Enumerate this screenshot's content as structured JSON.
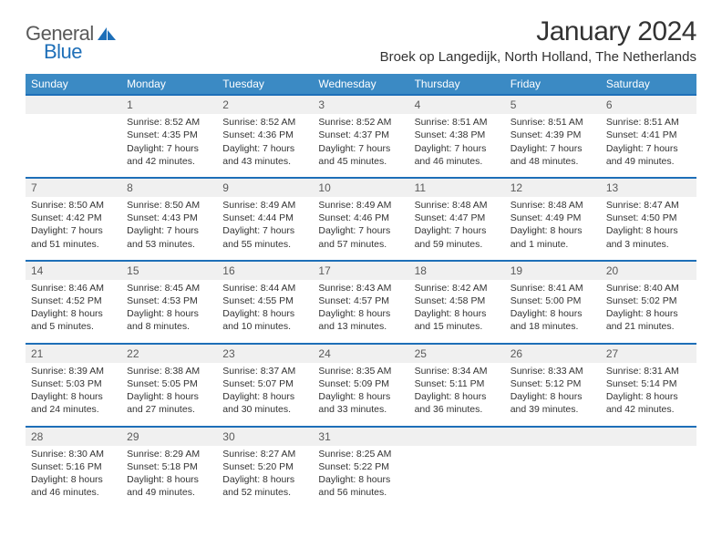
{
  "logo": {
    "word1": "General",
    "word2": "Blue"
  },
  "title": "January 2024",
  "location": "Broek op Langedijk, North Holland, The Netherlands",
  "colors": {
    "header_bg": "#3b8ac4",
    "header_border": "#1e6fb8",
    "daynum_bg": "#f0f0f0",
    "text": "#333333",
    "logo_gray": "#5a5a5a",
    "logo_blue": "#1e6fb8"
  },
  "weekdays": [
    "Sunday",
    "Monday",
    "Tuesday",
    "Wednesday",
    "Thursday",
    "Friday",
    "Saturday"
  ],
  "weeks": [
    {
      "nums": [
        "",
        "1",
        "2",
        "3",
        "4",
        "5",
        "6"
      ],
      "cells": [
        {
          "sunrise": "",
          "sunset": "",
          "daylight1": "",
          "daylight2": ""
        },
        {
          "sunrise": "Sunrise: 8:52 AM",
          "sunset": "Sunset: 4:35 PM",
          "daylight1": "Daylight: 7 hours",
          "daylight2": "and 42 minutes."
        },
        {
          "sunrise": "Sunrise: 8:52 AM",
          "sunset": "Sunset: 4:36 PM",
          "daylight1": "Daylight: 7 hours",
          "daylight2": "and 43 minutes."
        },
        {
          "sunrise": "Sunrise: 8:52 AM",
          "sunset": "Sunset: 4:37 PM",
          "daylight1": "Daylight: 7 hours",
          "daylight2": "and 45 minutes."
        },
        {
          "sunrise": "Sunrise: 8:51 AM",
          "sunset": "Sunset: 4:38 PM",
          "daylight1": "Daylight: 7 hours",
          "daylight2": "and 46 minutes."
        },
        {
          "sunrise": "Sunrise: 8:51 AM",
          "sunset": "Sunset: 4:39 PM",
          "daylight1": "Daylight: 7 hours",
          "daylight2": "and 48 minutes."
        },
        {
          "sunrise": "Sunrise: 8:51 AM",
          "sunset": "Sunset: 4:41 PM",
          "daylight1": "Daylight: 7 hours",
          "daylight2": "and 49 minutes."
        }
      ]
    },
    {
      "nums": [
        "7",
        "8",
        "9",
        "10",
        "11",
        "12",
        "13"
      ],
      "cells": [
        {
          "sunrise": "Sunrise: 8:50 AM",
          "sunset": "Sunset: 4:42 PM",
          "daylight1": "Daylight: 7 hours",
          "daylight2": "and 51 minutes."
        },
        {
          "sunrise": "Sunrise: 8:50 AM",
          "sunset": "Sunset: 4:43 PM",
          "daylight1": "Daylight: 7 hours",
          "daylight2": "and 53 minutes."
        },
        {
          "sunrise": "Sunrise: 8:49 AM",
          "sunset": "Sunset: 4:44 PM",
          "daylight1": "Daylight: 7 hours",
          "daylight2": "and 55 minutes."
        },
        {
          "sunrise": "Sunrise: 8:49 AM",
          "sunset": "Sunset: 4:46 PM",
          "daylight1": "Daylight: 7 hours",
          "daylight2": "and 57 minutes."
        },
        {
          "sunrise": "Sunrise: 8:48 AM",
          "sunset": "Sunset: 4:47 PM",
          "daylight1": "Daylight: 7 hours",
          "daylight2": "and 59 minutes."
        },
        {
          "sunrise": "Sunrise: 8:48 AM",
          "sunset": "Sunset: 4:49 PM",
          "daylight1": "Daylight: 8 hours",
          "daylight2": "and 1 minute."
        },
        {
          "sunrise": "Sunrise: 8:47 AM",
          "sunset": "Sunset: 4:50 PM",
          "daylight1": "Daylight: 8 hours",
          "daylight2": "and 3 minutes."
        }
      ]
    },
    {
      "nums": [
        "14",
        "15",
        "16",
        "17",
        "18",
        "19",
        "20"
      ],
      "cells": [
        {
          "sunrise": "Sunrise: 8:46 AM",
          "sunset": "Sunset: 4:52 PM",
          "daylight1": "Daylight: 8 hours",
          "daylight2": "and 5 minutes."
        },
        {
          "sunrise": "Sunrise: 8:45 AM",
          "sunset": "Sunset: 4:53 PM",
          "daylight1": "Daylight: 8 hours",
          "daylight2": "and 8 minutes."
        },
        {
          "sunrise": "Sunrise: 8:44 AM",
          "sunset": "Sunset: 4:55 PM",
          "daylight1": "Daylight: 8 hours",
          "daylight2": "and 10 minutes."
        },
        {
          "sunrise": "Sunrise: 8:43 AM",
          "sunset": "Sunset: 4:57 PM",
          "daylight1": "Daylight: 8 hours",
          "daylight2": "and 13 minutes."
        },
        {
          "sunrise": "Sunrise: 8:42 AM",
          "sunset": "Sunset: 4:58 PM",
          "daylight1": "Daylight: 8 hours",
          "daylight2": "and 15 minutes."
        },
        {
          "sunrise": "Sunrise: 8:41 AM",
          "sunset": "Sunset: 5:00 PM",
          "daylight1": "Daylight: 8 hours",
          "daylight2": "and 18 minutes."
        },
        {
          "sunrise": "Sunrise: 8:40 AM",
          "sunset": "Sunset: 5:02 PM",
          "daylight1": "Daylight: 8 hours",
          "daylight2": "and 21 minutes."
        }
      ]
    },
    {
      "nums": [
        "21",
        "22",
        "23",
        "24",
        "25",
        "26",
        "27"
      ],
      "cells": [
        {
          "sunrise": "Sunrise: 8:39 AM",
          "sunset": "Sunset: 5:03 PM",
          "daylight1": "Daylight: 8 hours",
          "daylight2": "and 24 minutes."
        },
        {
          "sunrise": "Sunrise: 8:38 AM",
          "sunset": "Sunset: 5:05 PM",
          "daylight1": "Daylight: 8 hours",
          "daylight2": "and 27 minutes."
        },
        {
          "sunrise": "Sunrise: 8:37 AM",
          "sunset": "Sunset: 5:07 PM",
          "daylight1": "Daylight: 8 hours",
          "daylight2": "and 30 minutes."
        },
        {
          "sunrise": "Sunrise: 8:35 AM",
          "sunset": "Sunset: 5:09 PM",
          "daylight1": "Daylight: 8 hours",
          "daylight2": "and 33 minutes."
        },
        {
          "sunrise": "Sunrise: 8:34 AM",
          "sunset": "Sunset: 5:11 PM",
          "daylight1": "Daylight: 8 hours",
          "daylight2": "and 36 minutes."
        },
        {
          "sunrise": "Sunrise: 8:33 AM",
          "sunset": "Sunset: 5:12 PM",
          "daylight1": "Daylight: 8 hours",
          "daylight2": "and 39 minutes."
        },
        {
          "sunrise": "Sunrise: 8:31 AM",
          "sunset": "Sunset: 5:14 PM",
          "daylight1": "Daylight: 8 hours",
          "daylight2": "and 42 minutes."
        }
      ]
    },
    {
      "nums": [
        "28",
        "29",
        "30",
        "31",
        "",
        "",
        ""
      ],
      "cells": [
        {
          "sunrise": "Sunrise: 8:30 AM",
          "sunset": "Sunset: 5:16 PM",
          "daylight1": "Daylight: 8 hours",
          "daylight2": "and 46 minutes."
        },
        {
          "sunrise": "Sunrise: 8:29 AM",
          "sunset": "Sunset: 5:18 PM",
          "daylight1": "Daylight: 8 hours",
          "daylight2": "and 49 minutes."
        },
        {
          "sunrise": "Sunrise: 8:27 AM",
          "sunset": "Sunset: 5:20 PM",
          "daylight1": "Daylight: 8 hours",
          "daylight2": "and 52 minutes."
        },
        {
          "sunrise": "Sunrise: 8:25 AM",
          "sunset": "Sunset: 5:22 PM",
          "daylight1": "Daylight: 8 hours",
          "daylight2": "and 56 minutes."
        },
        {
          "sunrise": "",
          "sunset": "",
          "daylight1": "",
          "daylight2": ""
        },
        {
          "sunrise": "",
          "sunset": "",
          "daylight1": "",
          "daylight2": ""
        },
        {
          "sunrise": "",
          "sunset": "",
          "daylight1": "",
          "daylight2": ""
        }
      ]
    }
  ]
}
